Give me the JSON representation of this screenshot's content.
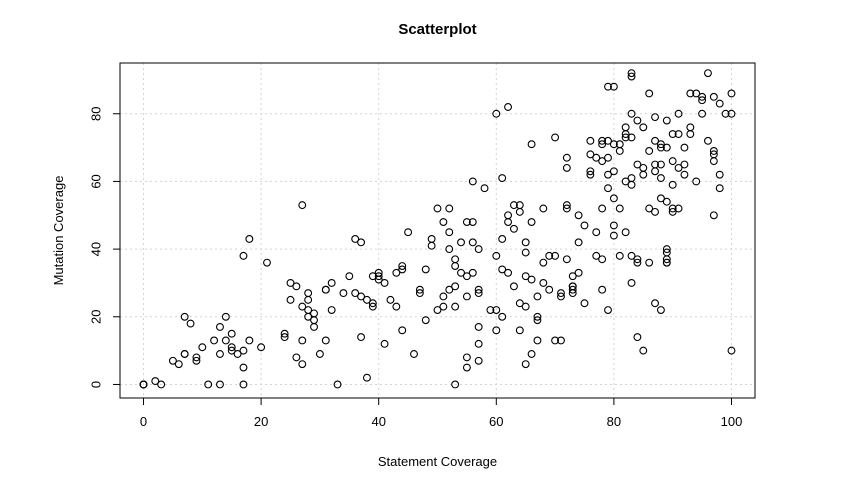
{
  "chart_data": {
    "type": "scatter",
    "title": "Scatterplot",
    "xlabel": "Statement Coverage",
    "ylabel": "Mutation Coverage",
    "xlim": [
      -4,
      104
    ],
    "ylim": [
      -4,
      95
    ],
    "xticks": [
      0,
      20,
      40,
      60,
      80,
      100
    ],
    "yticks": [
      0,
      20,
      40,
      60,
      80
    ],
    "grid": true,
    "point_style": "open-circle",
    "series": [
      {
        "points": [
          [
            0,
            0
          ],
          [
            0,
            0
          ],
          [
            0,
            0
          ],
          [
            2,
            1
          ],
          [
            3,
            0
          ],
          [
            5,
            7
          ],
          [
            6,
            6
          ],
          [
            7,
            20
          ],
          [
            7,
            9
          ],
          [
            7,
            9
          ],
          [
            8,
            18
          ],
          [
            9,
            7
          ],
          [
            9,
            8
          ],
          [
            10,
            11
          ],
          [
            11,
            0
          ],
          [
            12,
            13
          ],
          [
            13,
            0
          ],
          [
            13,
            17
          ],
          [
            13,
            9
          ],
          [
            14,
            20
          ],
          [
            14,
            13
          ],
          [
            15,
            11
          ],
          [
            15,
            10
          ],
          [
            15,
            15
          ],
          [
            16,
            9
          ],
          [
            17,
            0
          ],
          [
            17,
            5
          ],
          [
            17,
            10
          ],
          [
            17,
            38
          ],
          [
            18,
            43
          ],
          [
            18,
            13
          ],
          [
            20,
            11
          ],
          [
            21,
            36
          ],
          [
            24,
            15
          ],
          [
            24,
            14
          ],
          [
            25,
            30
          ],
          [
            25,
            25
          ],
          [
            26,
            8
          ],
          [
            26,
            29
          ],
          [
            27,
            53
          ],
          [
            27,
            6
          ],
          [
            27,
            23
          ],
          [
            27,
            13
          ],
          [
            28,
            27
          ],
          [
            28,
            25
          ],
          [
            28,
            22
          ],
          [
            28,
            20
          ],
          [
            29,
            19
          ],
          [
            29,
            17
          ],
          [
            29,
            21
          ],
          [
            30,
            9
          ],
          [
            31,
            28
          ],
          [
            31,
            28
          ],
          [
            31,
            13
          ],
          [
            32,
            22
          ],
          [
            32,
            30
          ],
          [
            33,
            0
          ],
          [
            34,
            27
          ],
          [
            35,
            32
          ],
          [
            36,
            43
          ],
          [
            36,
            27
          ],
          [
            37,
            42
          ],
          [
            37,
            14
          ],
          [
            37,
            26
          ],
          [
            38,
            2
          ],
          [
            38,
            25
          ],
          [
            39,
            32
          ],
          [
            39,
            24
          ],
          [
            39,
            23
          ],
          [
            40,
            33
          ],
          [
            40,
            31
          ],
          [
            40,
            32
          ],
          [
            41,
            12
          ],
          [
            41,
            30
          ],
          [
            42,
            25
          ],
          [
            43,
            23
          ],
          [
            43,
            33
          ],
          [
            44,
            16
          ],
          [
            44,
            34
          ],
          [
            44,
            35
          ],
          [
            45,
            45
          ],
          [
            46,
            9
          ],
          [
            47,
            27
          ],
          [
            47,
            28
          ],
          [
            48,
            34
          ],
          [
            48,
            19
          ],
          [
            49,
            41
          ],
          [
            49,
            43
          ],
          [
            50,
            52
          ],
          [
            50,
            22
          ],
          [
            51,
            48
          ],
          [
            51,
            26
          ],
          [
            51,
            23
          ],
          [
            52,
            52
          ],
          [
            52,
            45
          ],
          [
            52,
            40
          ],
          [
            52,
            28
          ],
          [
            53,
            37
          ],
          [
            53,
            35
          ],
          [
            53,
            0
          ],
          [
            53,
            29
          ],
          [
            53,
            23
          ],
          [
            54,
            42
          ],
          [
            54,
            33
          ],
          [
            55,
            26
          ],
          [
            55,
            32
          ],
          [
            55,
            8
          ],
          [
            55,
            5
          ],
          [
            55,
            48
          ],
          [
            56,
            60
          ],
          [
            56,
            42
          ],
          [
            56,
            48
          ],
          [
            56,
            33
          ],
          [
            57,
            40
          ],
          [
            57,
            27
          ],
          [
            57,
            28
          ],
          [
            57,
            17
          ],
          [
            57,
            12
          ],
          [
            57,
            7
          ],
          [
            58,
            58
          ],
          [
            59,
            22
          ],
          [
            60,
            80
          ],
          [
            60,
            38
          ],
          [
            60,
            22
          ],
          [
            60,
            16
          ],
          [
            61,
            61
          ],
          [
            61,
            43
          ],
          [
            61,
            34
          ],
          [
            61,
            20
          ],
          [
            62,
            82
          ],
          [
            62,
            48
          ],
          [
            62,
            50
          ],
          [
            62,
            33
          ],
          [
            63,
            53
          ],
          [
            63,
            46
          ],
          [
            63,
            29
          ],
          [
            64,
            51
          ],
          [
            64,
            53
          ],
          [
            64,
            24
          ],
          [
            64,
            16
          ],
          [
            65,
            42
          ],
          [
            65,
            39
          ],
          [
            65,
            32
          ],
          [
            65,
            23
          ],
          [
            65,
            6
          ],
          [
            66,
            71
          ],
          [
            66,
            48
          ],
          [
            66,
            31
          ],
          [
            66,
            9
          ],
          [
            67,
            20
          ],
          [
            67,
            19
          ],
          [
            67,
            13
          ],
          [
            67,
            26
          ],
          [
            68,
            52
          ],
          [
            68,
            36
          ],
          [
            68,
            30
          ],
          [
            69,
            38
          ],
          [
            69,
            28
          ],
          [
            70,
            73
          ],
          [
            70,
            38
          ],
          [
            70,
            13
          ],
          [
            71,
            27
          ],
          [
            71,
            26
          ],
          [
            71,
            13
          ],
          [
            72,
            67
          ],
          [
            72,
            64
          ],
          [
            72,
            53
          ],
          [
            72,
            52
          ],
          [
            72,
            37
          ],
          [
            73,
            32
          ],
          [
            73,
            28
          ],
          [
            73,
            27
          ],
          [
            73,
            29
          ],
          [
            73,
            29
          ],
          [
            74,
            50
          ],
          [
            74,
            42
          ],
          [
            74,
            33
          ],
          [
            75,
            47
          ],
          [
            75,
            24
          ],
          [
            76,
            72
          ],
          [
            76,
            68
          ],
          [
            76,
            63
          ],
          [
            76,
            62
          ],
          [
            77,
            67
          ],
          [
            77,
            45
          ],
          [
            77,
            38
          ],
          [
            78,
            72
          ],
          [
            78,
            71
          ],
          [
            78,
            66
          ],
          [
            78,
            52
          ],
          [
            78,
            37
          ],
          [
            78,
            28
          ],
          [
            79,
            88
          ],
          [
            79,
            72
          ],
          [
            79,
            67
          ],
          [
            79,
            62
          ],
          [
            79,
            58
          ],
          [
            79,
            22
          ],
          [
            80,
            88
          ],
          [
            80,
            71
          ],
          [
            80,
            63
          ],
          [
            80,
            55
          ],
          [
            80,
            47
          ],
          [
            80,
            44
          ],
          [
            81,
            71
          ],
          [
            81,
            69
          ],
          [
            81,
            52
          ],
          [
            81,
            38
          ],
          [
            82,
            76
          ],
          [
            82,
            74
          ],
          [
            82,
            73
          ],
          [
            82,
            60
          ],
          [
            82,
            45
          ],
          [
            83,
            92
          ],
          [
            83,
            91
          ],
          [
            83,
            80
          ],
          [
            83,
            73
          ],
          [
            83,
            61
          ],
          [
            83,
            59
          ],
          [
            83,
            38
          ],
          [
            83,
            30
          ],
          [
            84,
            36
          ],
          [
            84,
            37
          ],
          [
            84,
            14
          ],
          [
            84,
            78
          ],
          [
            84,
            65
          ],
          [
            85,
            76
          ],
          [
            85,
            64
          ],
          [
            85,
            62
          ],
          [
            85,
            10
          ],
          [
            86,
            86
          ],
          [
            86,
            69
          ],
          [
            86,
            52
          ],
          [
            86,
            36
          ],
          [
            87,
            79
          ],
          [
            87,
            72
          ],
          [
            87,
            65
          ],
          [
            87,
            63
          ],
          [
            87,
            51
          ],
          [
            87,
            24
          ],
          [
            88,
            71
          ],
          [
            88,
            70
          ],
          [
            88,
            65
          ],
          [
            88,
            61
          ],
          [
            88,
            55
          ],
          [
            88,
            22
          ],
          [
            89,
            78
          ],
          [
            89,
            70
          ],
          [
            89,
            54
          ],
          [
            89,
            39
          ],
          [
            89,
            40
          ],
          [
            89,
            36
          ],
          [
            89,
            37
          ],
          [
            89,
            36
          ],
          [
            90,
            74
          ],
          [
            90,
            66
          ],
          [
            90,
            59
          ],
          [
            90,
            51
          ],
          [
            90,
            52
          ],
          [
            91,
            80
          ],
          [
            91,
            74
          ],
          [
            91,
            64
          ],
          [
            91,
            52
          ],
          [
            92,
            70
          ],
          [
            92,
            65
          ],
          [
            92,
            62
          ],
          [
            93,
            86
          ],
          [
            93,
            76
          ],
          [
            93,
            74
          ],
          [
            94,
            86
          ],
          [
            94,
            60
          ],
          [
            95,
            85
          ],
          [
            95,
            84
          ],
          [
            95,
            80
          ],
          [
            96,
            92
          ],
          [
            96,
            72
          ],
          [
            97,
            85
          ],
          [
            97,
            69
          ],
          [
            97,
            68
          ],
          [
            97,
            66
          ],
          [
            97,
            50
          ],
          [
            98,
            83
          ],
          [
            98,
            62
          ],
          [
            98,
            58
          ],
          [
            99,
            80
          ],
          [
            100,
            86
          ],
          [
            100,
            80
          ],
          [
            100,
            10
          ]
        ]
      }
    ]
  }
}
